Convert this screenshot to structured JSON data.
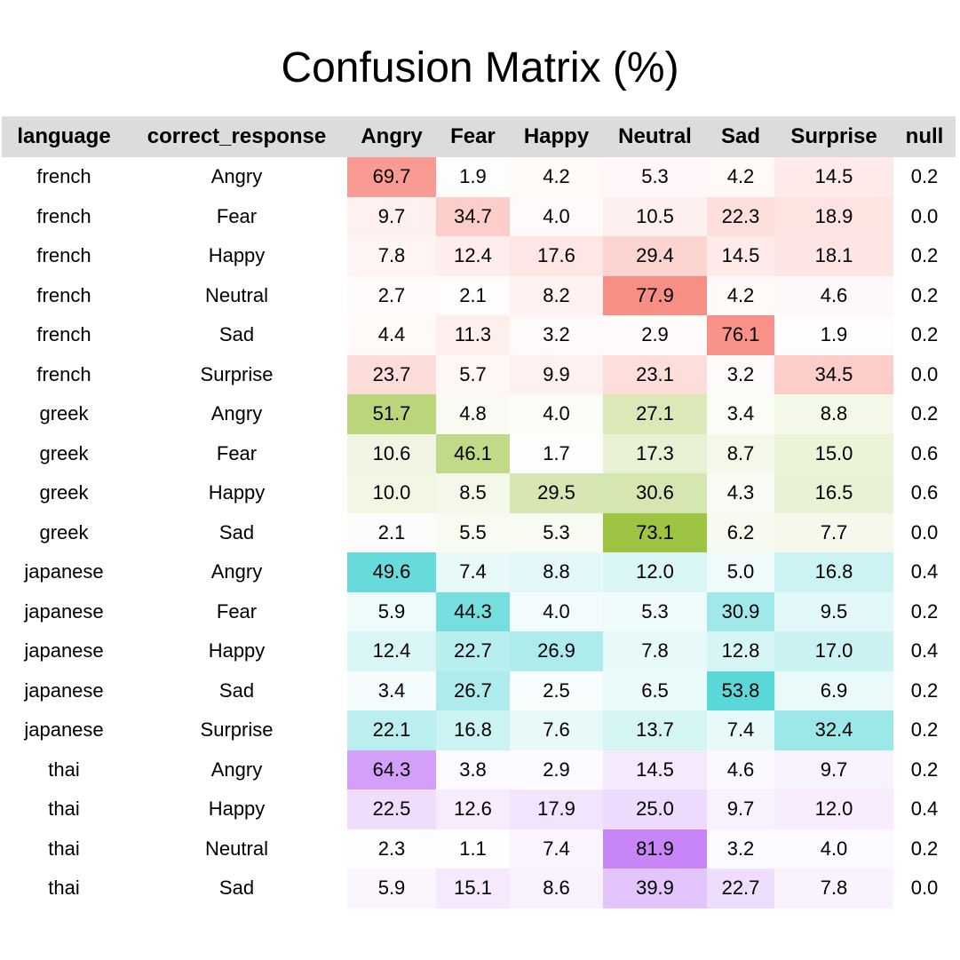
{
  "chart_data": {
    "type": "heatmap",
    "title": "Confusion Matrix (%)",
    "columns": [
      "language",
      "correct_response",
      "Angry",
      "Fear",
      "Happy",
      "Neutral",
      "Sad",
      "Surprise",
      "null"
    ],
    "heat_columns": [
      "Angry",
      "Fear",
      "Happy",
      "Neutral",
      "Sad",
      "Surprise"
    ],
    "color_scale_by_language": {
      "french": "#f88f85",
      "greek": "#9dc443",
      "japanese": "#5ad7d8",
      "thai": "#c785f8"
    },
    "rows": [
      {
        "language": "french",
        "correct_response": "Angry",
        "values": [
          "69.7",
          "1.9",
          "4.2",
          "5.3",
          "4.2",
          "14.5"
        ],
        "null": "0.2"
      },
      {
        "language": "french",
        "correct_response": "Fear",
        "values": [
          "9.7",
          "34.7",
          "4.0",
          "10.5",
          "22.3",
          "18.9"
        ],
        "null": "0.0"
      },
      {
        "language": "french",
        "correct_response": "Happy",
        "values": [
          "7.8",
          "12.4",
          "17.6",
          "29.4",
          "14.5",
          "18.1"
        ],
        "null": "0.2"
      },
      {
        "language": "french",
        "correct_response": "Neutral",
        "values": [
          "2.7",
          "2.1",
          "8.2",
          "77.9",
          "4.2",
          "4.6"
        ],
        "null": "0.2"
      },
      {
        "language": "french",
        "correct_response": "Sad",
        "values": [
          "4.4",
          "11.3",
          "3.2",
          "2.9",
          "76.1",
          "1.9"
        ],
        "null": "0.2"
      },
      {
        "language": "french",
        "correct_response": "Surprise",
        "values": [
          "23.7",
          "5.7",
          "9.9",
          "23.1",
          "3.2",
          "34.5"
        ],
        "null": "0.0"
      },
      {
        "language": "greek",
        "correct_response": "Angry",
        "values": [
          "51.7",
          "4.8",
          "4.0",
          "27.1",
          "3.4",
          "8.8"
        ],
        "null": "0.2"
      },
      {
        "language": "greek",
        "correct_response": "Fear",
        "values": [
          "10.6",
          "46.1",
          "1.7",
          "17.3",
          "8.7",
          "15.0"
        ],
        "null": "0.6"
      },
      {
        "language": "greek",
        "correct_response": "Happy",
        "values": [
          "10.0",
          "8.5",
          "29.5",
          "30.6",
          "4.3",
          "16.5"
        ],
        "null": "0.6"
      },
      {
        "language": "greek",
        "correct_response": "Sad",
        "values": [
          "2.1",
          "5.5",
          "5.3",
          "73.1",
          "6.2",
          "7.7"
        ],
        "null": "0.0"
      },
      {
        "language": "japanese",
        "correct_response": "Angry",
        "values": [
          "49.6",
          "7.4",
          "8.8",
          "12.0",
          "5.0",
          "16.8"
        ],
        "null": "0.4"
      },
      {
        "language": "japanese",
        "correct_response": "Fear",
        "values": [
          "5.9",
          "44.3",
          "4.0",
          "5.3",
          "30.9",
          "9.5"
        ],
        "null": "0.2"
      },
      {
        "language": "japanese",
        "correct_response": "Happy",
        "values": [
          "12.4",
          "22.7",
          "26.9",
          "7.8",
          "12.8",
          "17.0"
        ],
        "null": "0.4"
      },
      {
        "language": "japanese",
        "correct_response": "Sad",
        "values": [
          "3.4",
          "26.7",
          "2.5",
          "6.5",
          "53.8",
          "6.9"
        ],
        "null": "0.2"
      },
      {
        "language": "japanese",
        "correct_response": "Surprise",
        "values": [
          "22.1",
          "16.8",
          "7.6",
          "13.7",
          "7.4",
          "32.4"
        ],
        "null": "0.2"
      },
      {
        "language": "thai",
        "correct_response": "Angry",
        "values": [
          "64.3",
          "3.8",
          "2.9",
          "14.5",
          "4.6",
          "9.7"
        ],
        "null": "0.2"
      },
      {
        "language": "thai",
        "correct_response": "Happy",
        "values": [
          "22.5",
          "12.6",
          "17.9",
          "25.0",
          "9.7",
          "12.0"
        ],
        "null": "0.4"
      },
      {
        "language": "thai",
        "correct_response": "Neutral",
        "values": [
          "2.3",
          "1.1",
          "7.4",
          "81.9",
          "3.2",
          "4.0"
        ],
        "null": "0.2"
      },
      {
        "language": "thai",
        "correct_response": "Sad",
        "values": [
          "5.9",
          "15.1",
          "8.6",
          "39.9",
          "22.7",
          "7.8"
        ],
        "null": "0.0"
      }
    ]
  }
}
